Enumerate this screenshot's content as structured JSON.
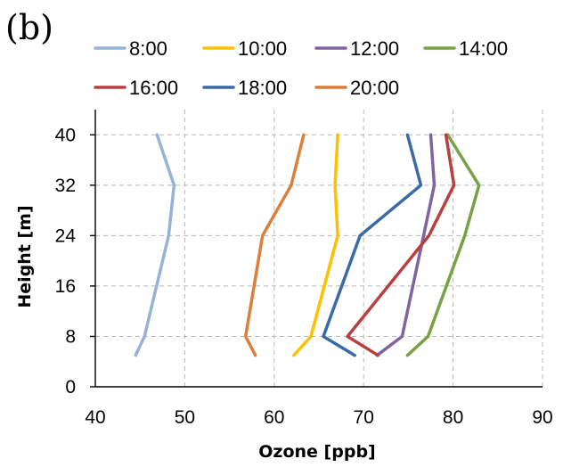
{
  "panel_label": "(b)",
  "chart_data": {
    "type": "line",
    "title": "",
    "xlabel": "Ozone [ppb]",
    "ylabel": "Height [m]",
    "xlim": [
      40,
      90
    ],
    "ylim": [
      0,
      44
    ],
    "x_ticks": [
      "40",
      "50",
      "60",
      "70",
      "80",
      "90"
    ],
    "y_ticks": [
      "0",
      "8",
      "16",
      "24",
      "32",
      "40"
    ],
    "grid": true,
    "legend_position": "top",
    "heights": [
      5,
      8,
      24,
      32,
      40
    ],
    "series": [
      {
        "name": "8:00",
        "color": "#95b3d7",
        "x": [
          44.5,
          45.5,
          48.2,
          48.8,
          46.9
        ],
        "y": [
          5,
          8,
          24,
          32,
          40
        ]
      },
      {
        "name": "10:00",
        "color": "#ffc000",
        "x": [
          62.2,
          64.1,
          67.1,
          66.8,
          67.1
        ],
        "y": [
          5,
          8,
          24,
          32,
          40
        ]
      },
      {
        "name": "12:00",
        "color": "#8064a2",
        "x": [
          71.5,
          74.3,
          76.7,
          77.9,
          77.5
        ],
        "y": [
          5,
          8,
          24,
          32,
          40
        ]
      },
      {
        "name": "14:00",
        "color": "#77a144",
        "x": [
          74.9,
          77.2,
          81.3,
          82.9,
          79.4
        ],
        "y": [
          5,
          8,
          24,
          32,
          40
        ]
      },
      {
        "name": "16:00",
        "color": "#b84040",
        "x": [
          71.6,
          68.2,
          77.3,
          80.1,
          79.2
        ],
        "y": [
          5,
          8,
          24,
          32,
          40
        ]
      },
      {
        "name": "18:00",
        "color": "#3a6aa8",
        "x": [
          69.0,
          65.5,
          69.6,
          76.4,
          74.9
        ],
        "y": [
          5,
          8,
          24,
          32,
          40
        ]
      },
      {
        "name": "20:00",
        "color": "#dd7f3a",
        "x": [
          57.9,
          56.8,
          58.7,
          61.9,
          63.3
        ],
        "y": [
          5,
          8,
          24,
          32,
          40
        ]
      }
    ]
  }
}
